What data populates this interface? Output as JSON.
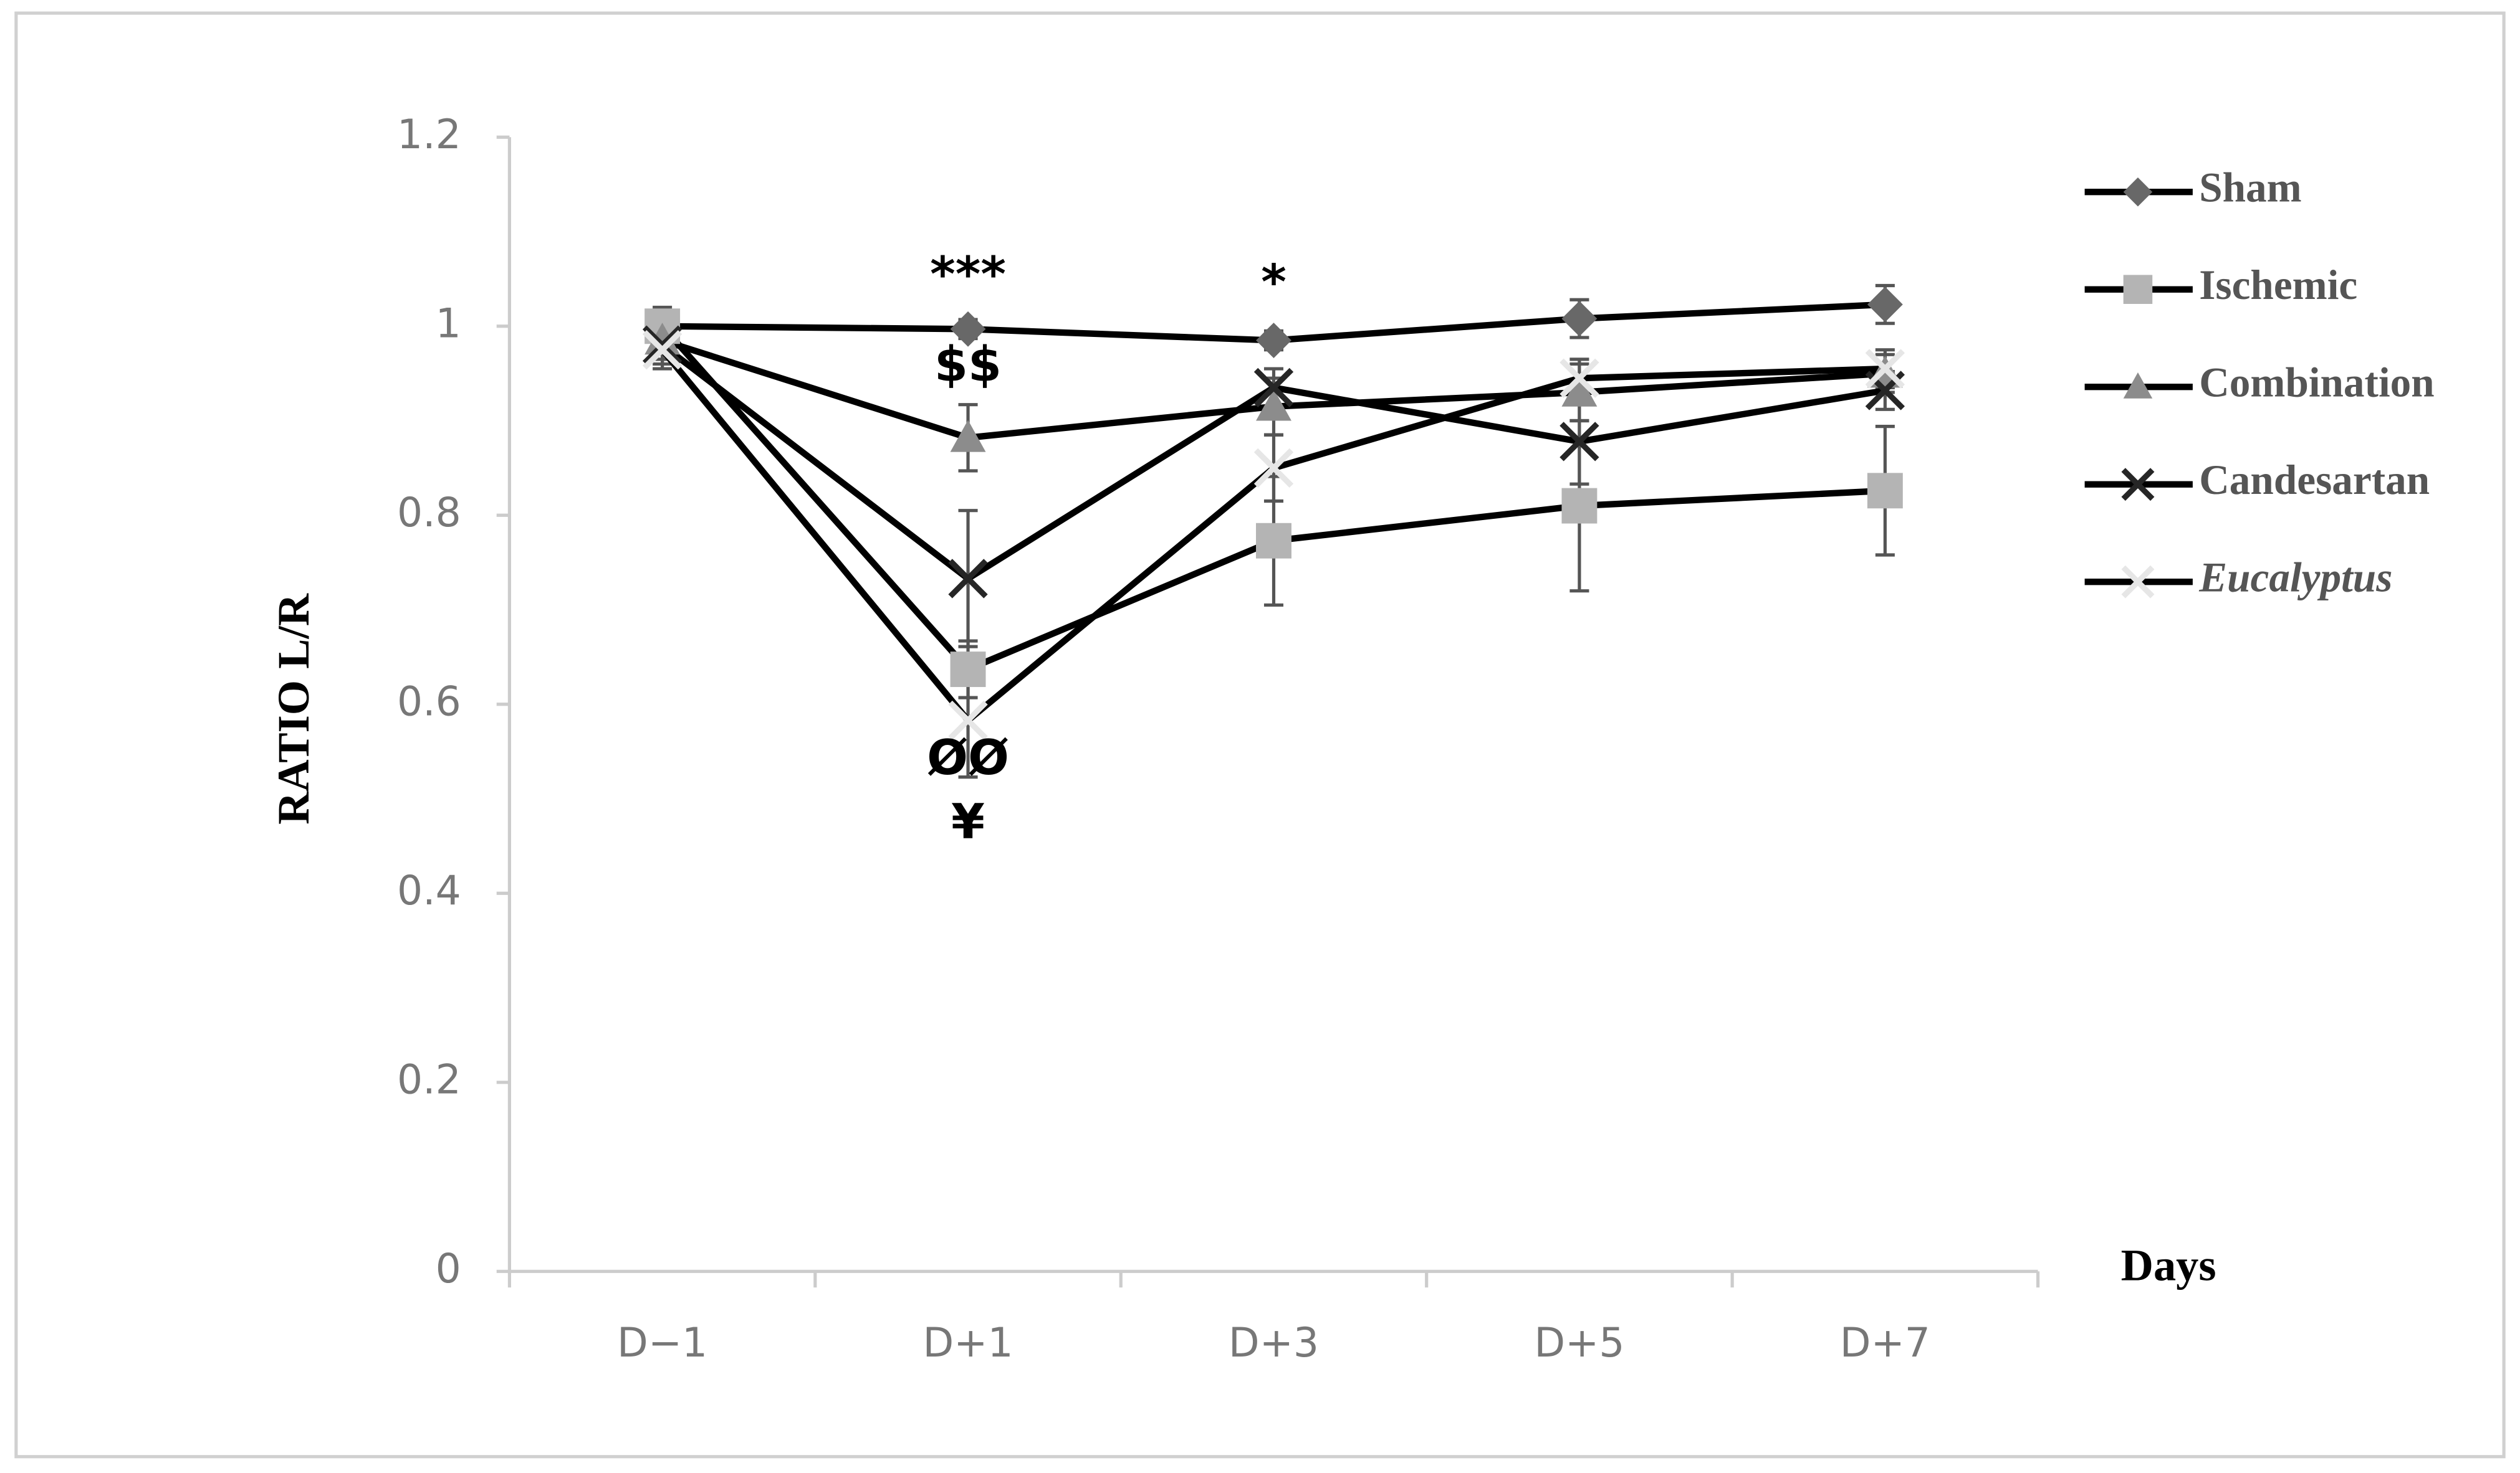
{
  "chart_data": {
    "type": "line",
    "y_label": "RATIO L/R",
    "x_label": "Days",
    "categories": [
      "D−1",
      "D+1",
      "D+3",
      "D+5",
      "D+7"
    ],
    "ylim": [
      0,
      1.2
    ],
    "yticks": [
      0,
      0.2,
      0.4,
      0.6,
      0.8,
      1,
      1.2
    ],
    "grid": false,
    "legend": "right",
    "line_color": "#000000",
    "series": [
      {
        "name": "Sham",
        "color": "#686868",
        "marker": "diamond",
        "values": [
          1.0,
          0.997,
          0.985,
          1.008,
          1.023
        ],
        "errors": [
          0.02,
          0.01,
          0.01,
          0.02,
          0.02
        ]
      },
      {
        "name": "Ischemic",
        "color": "#b4b4b4",
        "marker": "square",
        "values": [
          1.0,
          0.637,
          0.773,
          0.81,
          0.826
        ],
        "errors": [
          0.01,
          0.03,
          0.068,
          0.09,
          0.068
        ]
      },
      {
        "name": "Combination",
        "color": "#8c8c8c",
        "marker": "triangle",
        "values": [
          0.985,
          0.882,
          0.915,
          0.93,
          0.95
        ],
        "errors": [
          0.02,
          0.035,
          0.03,
          0.03,
          0.02
        ]
      },
      {
        "name": "Candesartan",
        "color": "#262626",
        "marker": "x",
        "values": [
          0.98,
          0.733,
          0.935,
          0.878,
          0.932
        ],
        "errors": [
          0.02,
          0.072,
          0.02,
          0.045,
          0.02
        ]
      },
      {
        "name": "Eucalyptus",
        "color": "#e6e6e6",
        "marker": "x",
        "values": [
          0.975,
          0.583,
          0.85,
          0.945,
          0.955
        ],
        "errors": [
          0.02,
          0.06,
          0.035,
          0.02,
          0.02
        ]
      }
    ],
    "annotations": [
      {
        "text": "***",
        "category": 1
      },
      {
        "text": "$$",
        "category": 1
      },
      {
        "text": "*",
        "category": 2
      },
      {
        "text": "ØØ",
        "category": 1
      },
      {
        "text": "¥",
        "category": 1
      }
    ]
  }
}
